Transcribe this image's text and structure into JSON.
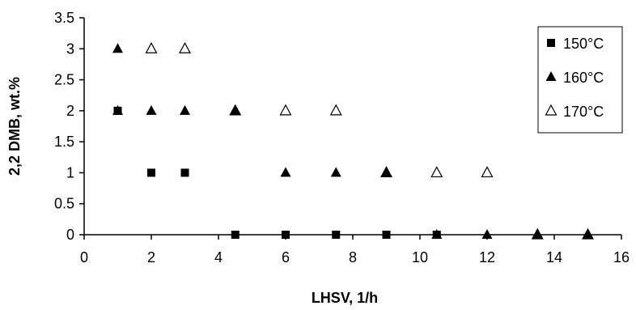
{
  "chart_data": {
    "type": "scatter",
    "title": "",
    "xlabel": "LHSV, 1/h",
    "ylabel": "2,2 DMB, wt.%",
    "xlim": [
      0,
      16
    ],
    "ylim": [
      0,
      3.5
    ],
    "x_ticks": [
      "0",
      "2",
      "4",
      "6",
      "8",
      "10",
      "12",
      "14",
      "16"
    ],
    "y_ticks": [
      "0",
      "0.5",
      "1",
      "1.5",
      "2",
      "2.5",
      "3",
      "3.5"
    ],
    "grid": false,
    "legend_position": "top-right",
    "series": [
      {
        "name": "150°C",
        "marker": "filled-square",
        "color": "#000000",
        "x": [
          1,
          2,
          3,
          4.5,
          6,
          7.5,
          9,
          10.5
        ],
        "y": [
          2,
          1,
          1,
          0,
          0,
          0,
          0,
          0
        ]
      },
      {
        "name": "160°C",
        "marker": "filled-triangle",
        "color": "#000000",
        "x": [
          1,
          1,
          2,
          3,
          4.5,
          6,
          7.5,
          9,
          10.5,
          12,
          13.5,
          15
        ],
        "y": [
          3,
          2,
          2,
          2,
          2,
          1,
          1,
          1,
          0,
          0,
          0,
          0
        ]
      },
      {
        "name": "170°C",
        "marker": "open-triangle",
        "color": "#000000",
        "x": [
          2,
          3,
          4.5,
          6,
          7.5,
          9,
          10.5,
          12,
          13.5,
          15
        ],
        "y": [
          3,
          3,
          2,
          2,
          2,
          1,
          1,
          1,
          0,
          0
        ]
      }
    ]
  }
}
